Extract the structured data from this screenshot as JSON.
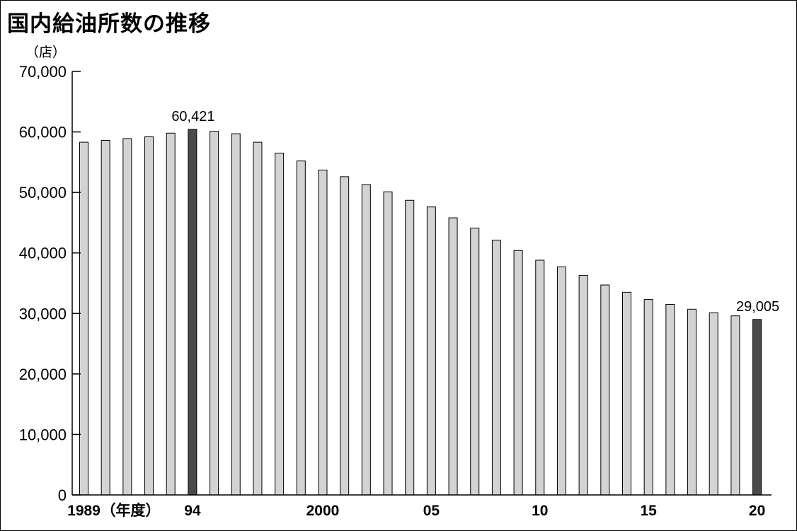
{
  "chart_data": {
    "type": "bar",
    "title": "国内給油所数の推移",
    "ylabel": "（店）",
    "ylim": [
      0,
      70000
    ],
    "yticks": [
      "0",
      "10,000",
      "20,000",
      "30,000",
      "40,000",
      "50,000",
      "60,000",
      "70,000"
    ],
    "ytick_values": [
      0,
      10000,
      20000,
      30000,
      40000,
      50000,
      60000,
      70000
    ],
    "categories": [
      "1989",
      "1990",
      "1991",
      "1992",
      "1993",
      "1994",
      "1995",
      "1996",
      "1997",
      "1998",
      "1999",
      "2000",
      "2001",
      "2002",
      "2003",
      "2004",
      "2005",
      "2006",
      "2007",
      "2008",
      "2009",
      "2010",
      "2011",
      "2012",
      "2013",
      "2014",
      "2015",
      "2016",
      "2017",
      "2018",
      "2019",
      "2020"
    ],
    "values": [
      58300,
      58600,
      58900,
      59200,
      59800,
      60421,
      60100,
      59700,
      58300,
      56500,
      55200,
      53700,
      52600,
      51300,
      50100,
      48700,
      47600,
      45800,
      44100,
      42100,
      40400,
      38800,
      37700,
      36300,
      34700,
      33500,
      32300,
      31500,
      30700,
      30100,
      29600,
      29005
    ],
    "xtick_labels": [
      {
        "index": 0,
        "text": "1989"
      },
      {
        "index": 0,
        "text": "（年度）",
        "suffix": true
      },
      {
        "index": 5,
        "text": "94"
      },
      {
        "index": 11,
        "text": "2000"
      },
      {
        "index": 16,
        "text": "05"
      },
      {
        "index": 21,
        "text": "10"
      },
      {
        "index": 26,
        "text": "15"
      },
      {
        "index": 31,
        "text": "20"
      }
    ],
    "highlight_indices": [
      5,
      31
    ],
    "annotations": [
      {
        "index": 5,
        "text": "60,421"
      },
      {
        "index": 31,
        "text": "29,005"
      }
    ],
    "colors": {
      "bar": "#d3d3d3",
      "highlight": "#4a4a4a",
      "stroke": "#000000"
    },
    "grid": false
  }
}
